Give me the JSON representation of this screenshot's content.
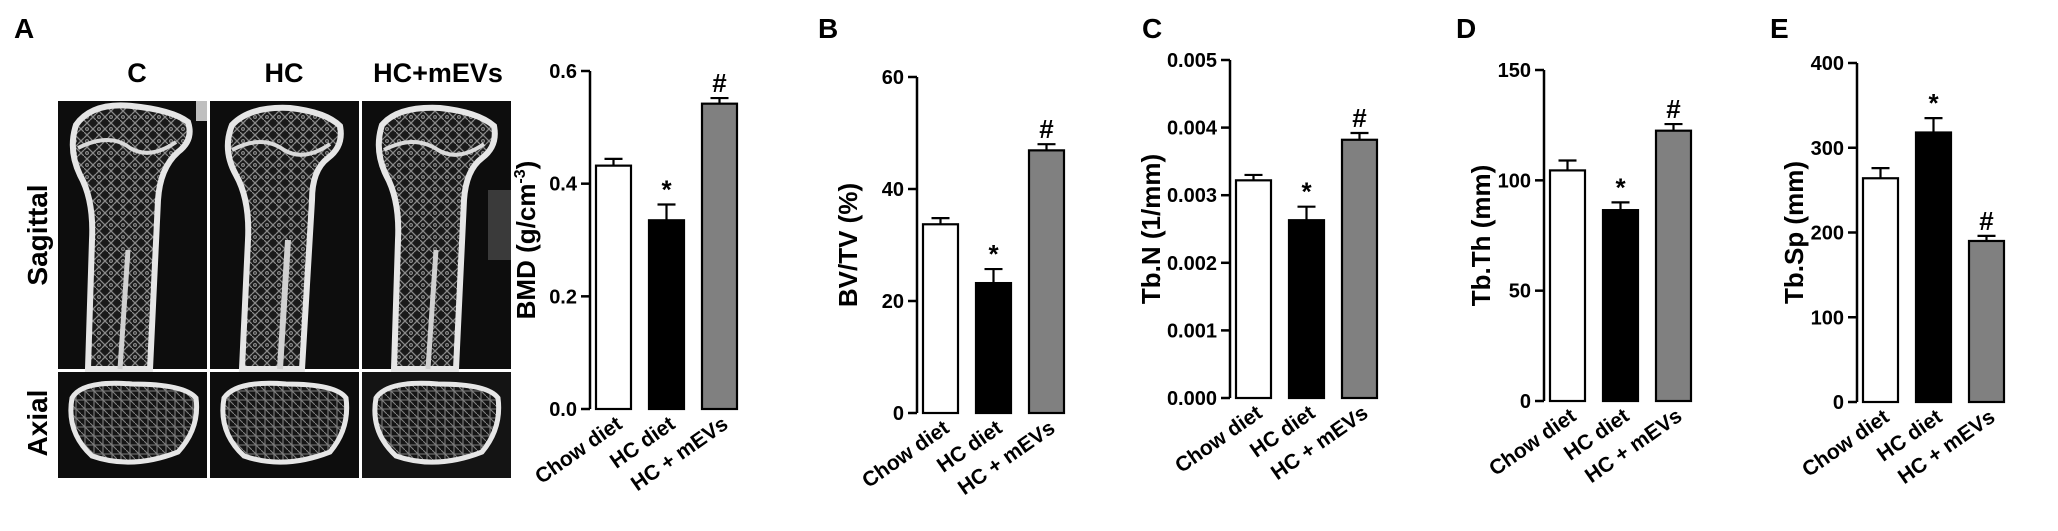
{
  "panel_a": {
    "letter": "A",
    "columns": [
      "C",
      "HC",
      "HC+mEVs"
    ],
    "rows": [
      "Sagittal",
      "Axial"
    ]
  },
  "colors": {
    "chow": "#ffffff",
    "hc": "#000000",
    "hc_mevs": "#808080",
    "axis": "#000000"
  },
  "chart_data": [
    {
      "id": "A",
      "letter": "",
      "type": "bar",
      "categories": [
        "Chow diet",
        "HC diet",
        "HC + mEVs"
      ],
      "values": [
        0.432,
        0.335,
        0.542
      ],
      "errors": [
        0.012,
        0.028,
        0.01
      ],
      "annotations": [
        "",
        "*",
        "#"
      ],
      "ylabel": "BMD (g/cm",
      "ylabel_sup": "-3",
      "ylabel_end": ")",
      "ylim": [
        0,
        0.6
      ],
      "ticks": [
        0.0,
        0.2,
        0.4,
        0.6
      ],
      "tick_labels": [
        "0.0",
        "0.2",
        "0.4",
        "0.6"
      ]
    },
    {
      "id": "B",
      "letter": "B",
      "type": "bar",
      "categories": [
        "Chow diet",
        "HC diet",
        "HC + mEVs"
      ],
      "values": [
        33.7,
        23.2,
        46.9
      ],
      "errors": [
        1.1,
        2.5,
        1.1
      ],
      "annotations": [
        "",
        "*",
        "#"
      ],
      "ylabel": "BV/TV (%)",
      "ylabel_sup": "",
      "ylabel_end": "",
      "ylim": [
        0,
        60
      ],
      "ticks": [
        0,
        20,
        40,
        60
      ],
      "tick_labels": [
        "0",
        "20",
        "40",
        "60"
      ]
    },
    {
      "id": "C",
      "letter": "C",
      "type": "bar",
      "categories": [
        "Chow diet",
        "HC diet",
        "HC + mEVs"
      ],
      "values": [
        0.00322,
        0.00263,
        0.00382
      ],
      "errors": [
        8e-05,
        0.0002,
        0.0001
      ],
      "annotations": [
        "",
        "*",
        "#"
      ],
      "ylabel": "Tb.N (1/mm)",
      "ylabel_sup": "",
      "ylabel_end": "",
      "ylim": [
        0,
        0.005
      ],
      "ticks": [
        0,
        0.001,
        0.002,
        0.003,
        0.004,
        0.005
      ],
      "tick_labels": [
        "0.000",
        "0.001",
        "0.002",
        "0.003",
        "0.004",
        "0.005"
      ]
    },
    {
      "id": "D",
      "letter": "D",
      "type": "bar",
      "categories": [
        "Chow diet",
        "HC diet",
        "HC + mEVs"
      ],
      "values": [
        104.5,
        86.5,
        122.5
      ],
      "errors": [
        4.5,
        3.5,
        3.0
      ],
      "annotations": [
        "",
        "*",
        "#"
      ],
      "ylabel": "Tb.Th (mm)",
      "ylabel_sup": "",
      "ylabel_end": "",
      "ylim": [
        0,
        150
      ],
      "ticks": [
        0,
        50,
        100,
        150
      ],
      "tick_labels": [
        "0",
        "50",
        "100",
        "150"
      ]
    },
    {
      "id": "E",
      "letter": "E",
      "type": "bar",
      "categories": [
        "Chow diet",
        "HC diet",
        "HC + mEVs"
      ],
      "values": [
        264,
        318,
        190
      ],
      "errors": [
        12,
        17,
        6
      ],
      "annotations": [
        "",
        "*",
        "#"
      ],
      "ylabel": "Tb.Sp (mm)",
      "ylabel_sup": "",
      "ylabel_end": "",
      "ylim": [
        0,
        400
      ],
      "ticks": [
        0,
        100,
        200,
        300,
        400
      ],
      "tick_labels": [
        "0",
        "100",
        "200",
        "300",
        "400"
      ]
    }
  ]
}
